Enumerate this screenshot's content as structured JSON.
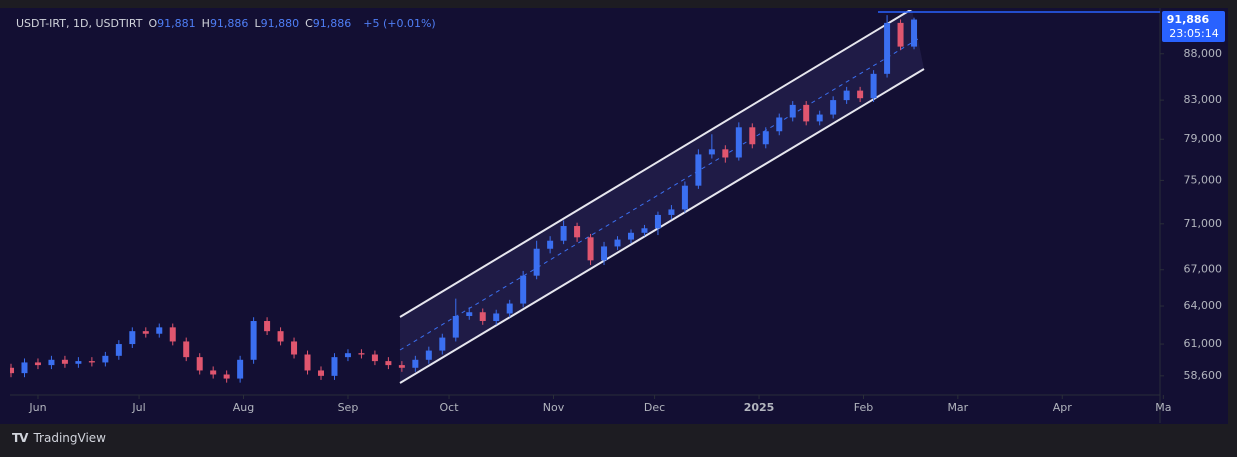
{
  "header": {
    "symbol": "USDT-IRT, 1D, USDTIRT",
    "ohlc": [
      {
        "label": "O",
        "value": "91,881"
      },
      {
        "label": "H",
        "value": "91,886"
      },
      {
        "label": "L",
        "value": "91,880"
      },
      {
        "label": "C",
        "value": "91,886"
      }
    ],
    "change": "+5 (+0.01%)"
  },
  "price_label": {
    "price": "91,886",
    "countdown": "23:05:14"
  },
  "brand": "TradingView",
  "chart_data": {
    "type": "candlestick",
    "log_scale": true,
    "up_color": "#3b6ff0",
    "down_color": "#e0566f",
    "x": [
      -8,
      -4,
      0,
      4,
      8,
      12,
      16,
      20,
      24,
      28,
      32,
      36,
      40,
      44,
      48,
      52,
      56,
      60,
      64,
      68,
      72,
      76,
      80,
      84,
      88,
      92,
      96,
      100,
      104,
      108,
      112,
      116,
      120,
      124,
      128,
      132,
      136,
      140,
      144,
      148,
      152,
      156,
      160,
      164,
      168,
      172,
      176,
      180,
      184,
      188,
      192,
      196,
      200,
      204,
      208,
      212,
      216,
      220,
      224,
      228,
      232,
      236,
      240,
      244,
      248,
      252,
      256,
      260
    ],
    "open": [
      59200,
      58800,
      59600,
      59400,
      59800,
      59500,
      59700,
      59600,
      60100,
      61000,
      62000,
      61800,
      62300,
      61200,
      60000,
      59000,
      58700,
      58400,
      59800,
      62800,
      62000,
      61200,
      60200,
      59000,
      58600,
      60000,
      60300,
      60200,
      59700,
      59400,
      59200,
      59800,
      60500,
      61500,
      63200,
      63500,
      62800,
      63400,
      64200,
      66500,
      68800,
      69500,
      70800,
      69800,
      67800,
      69000,
      69600,
      70200,
      70600,
      71800,
      72300,
      74500,
      77500,
      78000,
      77200,
      80200,
      78500,
      79800,
      81200,
      82500,
      80800,
      81500,
      83000,
      84000,
      83200,
      85800,
      91500,
      88800
    ],
    "high": [
      59500,
      59900,
      59900,
      60100,
      60100,
      60000,
      60000,
      60400,
      61300,
      62300,
      62300,
      62600,
      62600,
      61500,
      60300,
      59300,
      59000,
      60100,
      63100,
      63100,
      62300,
      61500,
      60500,
      59300,
      60300,
      60600,
      60600,
      60500,
      60000,
      59700,
      60100,
      60800,
      61800,
      64600,
      63900,
      63800,
      63700,
      64500,
      66900,
      69500,
      69900,
      71300,
      71100,
      70100,
      69400,
      69900,
      70500,
      70900,
      72100,
      72700,
      74900,
      78000,
      79500,
      78400,
      80700,
      80600,
      80200,
      81600,
      82900,
      82900,
      81900,
      83400,
      84400,
      84400,
      86200,
      92400,
      91900,
      92100
    ],
    "low": [
      58500,
      58500,
      59100,
      59100,
      59200,
      59200,
      59300,
      59300,
      59800,
      60700,
      61500,
      61500,
      60900,
      59700,
      58700,
      58400,
      58100,
      58100,
      59500,
      61700,
      60900,
      59900,
      58700,
      58300,
      58300,
      59700,
      59900,
      59400,
      59100,
      58900,
      58900,
      59500,
      60200,
      61200,
      62900,
      62500,
      62500,
      63100,
      63900,
      66200,
      68400,
      69200,
      69400,
      67400,
      67400,
      68700,
      69300,
      69900,
      70000,
      71400,
      72000,
      74200,
      77100,
      76700,
      76900,
      78100,
      78100,
      79400,
      80800,
      80400,
      80400,
      81100,
      82600,
      82800,
      82800,
      85400,
      88400,
      88500
    ],
    "close": [
      58800,
      59600,
      59400,
      59800,
      59500,
      59700,
      59600,
      60100,
      61000,
      62000,
      61800,
      62300,
      61200,
      60000,
      59000,
      58700,
      58400,
      59800,
      62800,
      62000,
      61200,
      60200,
      59000,
      58600,
      60000,
      60300,
      60200,
      59700,
      59400,
      59200,
      59800,
      60500,
      61500,
      63200,
      63500,
      62800,
      63400,
      64200,
      66500,
      68800,
      69500,
      70800,
      69800,
      67800,
      69000,
      69600,
      70200,
      70600,
      71800,
      72300,
      74500,
      77500,
      78000,
      77200,
      80200,
      78500,
      79800,
      81200,
      82500,
      80800,
      81500,
      83000,
      84000,
      83200,
      85800,
      91500,
      88800,
      91886
    ],
    "xlim": [
      -8.3,
      333
    ],
    "xticks": [
      {
        "value": 0,
        "label": "Jun"
      },
      {
        "value": 30,
        "label": "Jul"
      },
      {
        "value": 61,
        "label": "Aug"
      },
      {
        "value": 92,
        "label": "Sep"
      },
      {
        "value": 122,
        "label": "Oct"
      },
      {
        "value": 153,
        "label": "Nov"
      },
      {
        "value": 183,
        "label": "Dec"
      },
      {
        "value": 214,
        "label": "2025"
      },
      {
        "value": 245,
        "label": "Feb"
      },
      {
        "value": 273,
        "label": "Mar"
      },
      {
        "value": 304,
        "label": "Apr"
      },
      {
        "value": 334,
        "label": "Ma"
      }
    ],
    "ylim": [
      57200,
      93000
    ],
    "yticks": [
      {
        "value": 58600,
        "label": "58,600"
      },
      {
        "value": 61000,
        "label": "61,000"
      },
      {
        "value": 64000,
        "label": "64,000"
      },
      {
        "value": 67000,
        "label": "67,000"
      },
      {
        "value": 71000,
        "label": "71,000"
      },
      {
        "value": 75000,
        "label": "75,000"
      },
      {
        "value": 79000,
        "label": "79,000"
      },
      {
        "value": 83000,
        "label": "83,000"
      },
      {
        "value": 88000,
        "label": "88,000"
      }
    ]
  }
}
